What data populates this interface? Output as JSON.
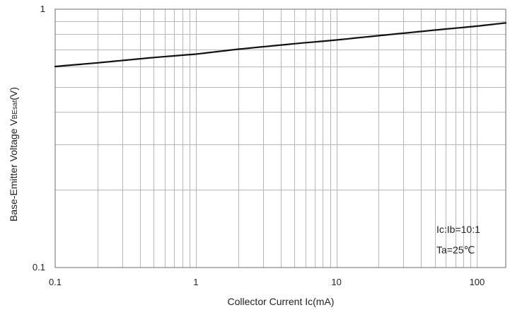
{
  "chart_data": {
    "type": "line",
    "title": "",
    "xlabel": "Collector Current   Ic(mA)",
    "ylabel": {
      "prefix": "Base-Emitter Voltage   V",
      "subscript": "BEsat",
      "suffix": "(V)"
    },
    "x_scale": "log",
    "y_scale": "log",
    "xlim": [
      0.1,
      160
    ],
    "ylim": [
      0.1,
      1
    ],
    "x_tick_labels": [
      "0.1",
      "1",
      "10",
      "100"
    ],
    "y_tick_labels": [
      "0.1",
      "1"
    ],
    "grid": true,
    "series": [
      {
        "x": [
          0.1,
          0.2,
          0.5,
          1,
          2,
          5,
          10,
          20,
          50,
          100,
          160
        ],
        "y": [
          0.6,
          0.62,
          0.65,
          0.67,
          0.7,
          0.735,
          0.76,
          0.79,
          0.83,
          0.86,
          0.885
        ]
      }
    ],
    "annotations": [
      "Ic:Ib=10:1",
      "Ta=25℃"
    ]
  }
}
